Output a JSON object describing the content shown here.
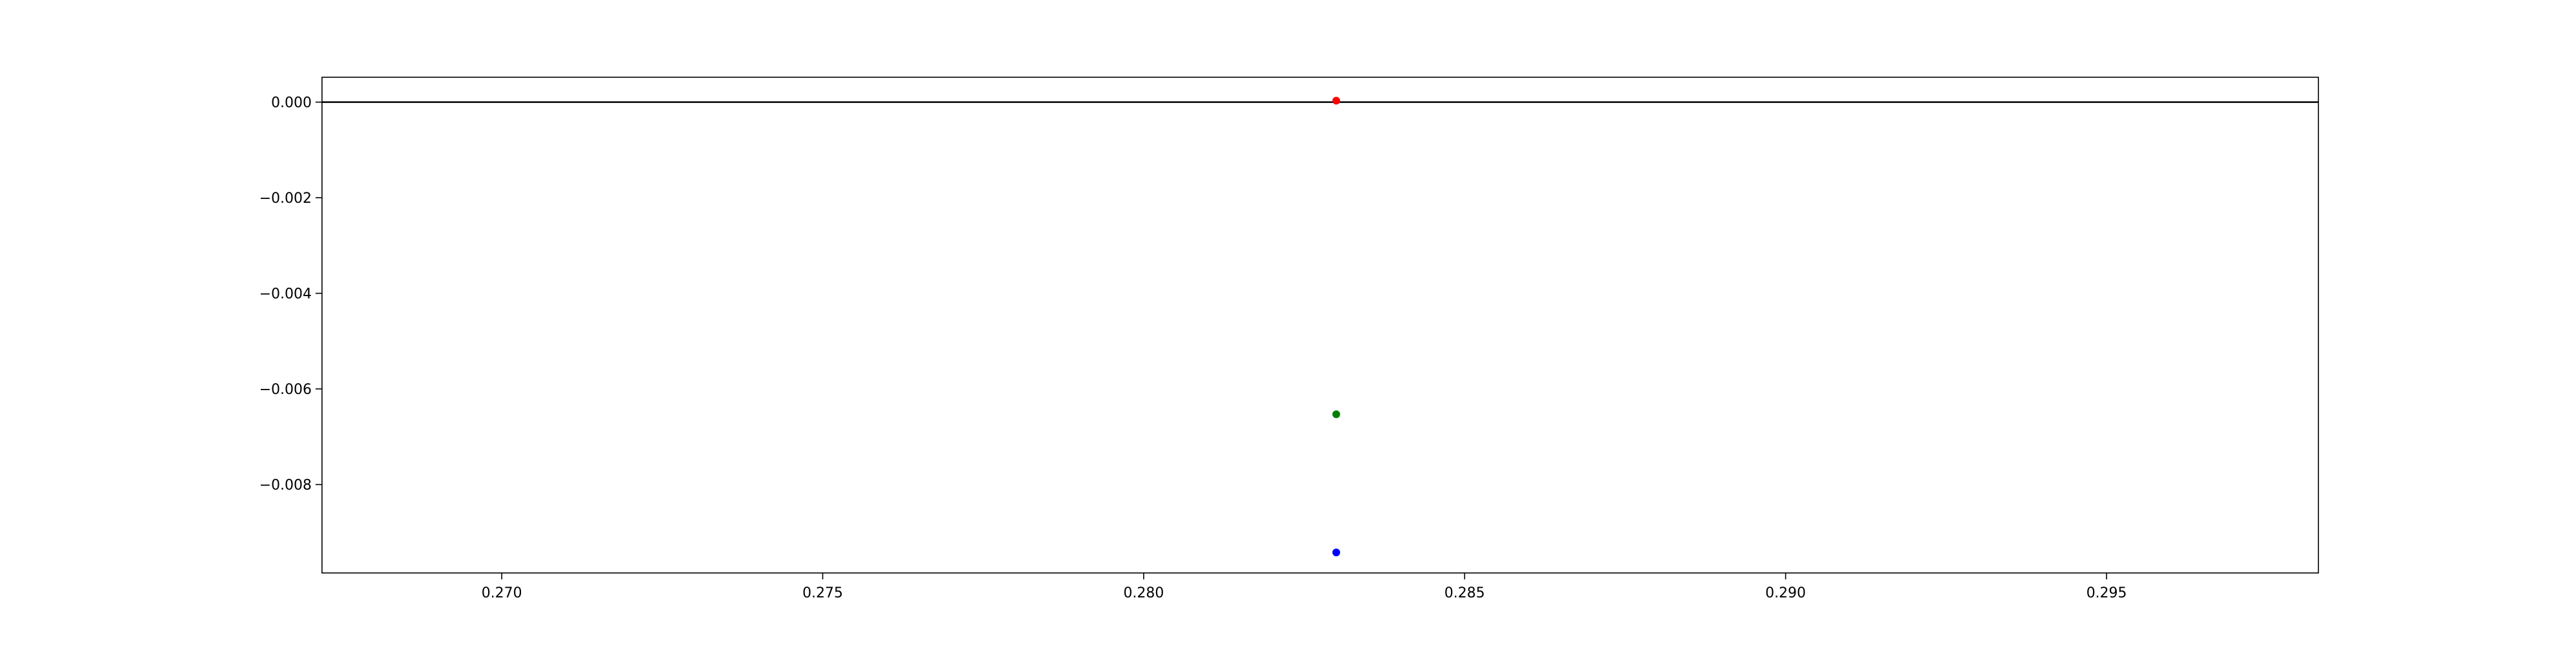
{
  "chart_data": {
    "type": "scatter",
    "title": "",
    "xlabel": "",
    "ylabel": "",
    "xlim": [
      0.2672,
      0.2983
    ],
    "ylim": [
      -0.00985,
      0.00052
    ],
    "grid": false,
    "x_ticks": [
      {
        "value": 0.27,
        "label": "0.270"
      },
      {
        "value": 0.275,
        "label": "0.275"
      },
      {
        "value": 0.28,
        "label": "0.280"
      },
      {
        "value": 0.285,
        "label": "0.285"
      },
      {
        "value": 0.29,
        "label": "0.290"
      },
      {
        "value": 0.295,
        "label": "0.295"
      }
    ],
    "y_ticks": [
      {
        "value": 0.0,
        "label": "0.000"
      },
      {
        "value": -0.002,
        "label": "−0.002"
      },
      {
        "value": -0.004,
        "label": "−0.004"
      },
      {
        "value": -0.006,
        "label": "−0.006"
      },
      {
        "value": -0.008,
        "label": "−0.008"
      }
    ],
    "hline": {
      "y": 0.0,
      "color": "#000000"
    },
    "points": [
      {
        "x": 0.283,
        "y": 3e-05,
        "color": "#ff0000"
      },
      {
        "x": 0.283,
        "y": -0.00653,
        "color": "#008000"
      },
      {
        "x": 0.283,
        "y": -0.00942,
        "color": "#0000ff"
      }
    ]
  }
}
